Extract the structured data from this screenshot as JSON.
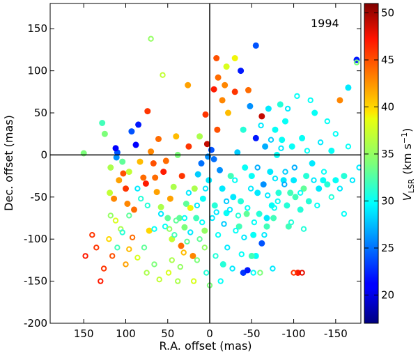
{
  "chart_data": {
    "type": "scatter",
    "epoch_label": "1994",
    "xlabel": "R.A. offset (mas)",
    "ylabel": "Dec. offset (mas)",
    "colorbar_label": "V_LSR (km s^-1)",
    "colorbar_label_parts": {
      "v": "V",
      "sub": "LSR",
      "unit": "(km s",
      "sup": "−1",
      "close": ")"
    },
    "xlim": [
      190,
      -180
    ],
    "ylim": [
      -200,
      180
    ],
    "x_reversed": true,
    "crosshair": {
      "x": 0,
      "y": 0
    },
    "x_ticks": [
      150,
      100,
      50,
      0,
      -50,
      -100,
      -150
    ],
    "y_ticks": [
      150,
      100,
      50,
      0,
      -50,
      -100,
      -150,
      -200
    ],
    "colorbar": {
      "vmin": 17,
      "vmax": 51,
      "colormap": "jet",
      "ticks": [
        20,
        25,
        30,
        35,
        40,
        45,
        50
      ]
    },
    "series": [
      {
        "kind": "filled",
        "points": [
          [
            150,
            2,
            34
          ],
          [
            128,
            38,
            32
          ],
          [
            125,
            25,
            34
          ],
          [
            119,
            -45,
            37
          ],
          [
            118,
            -15,
            36
          ],
          [
            114,
            -52,
            43
          ],
          [
            110,
            3,
            24
          ],
          [
            112,
            8,
            21
          ],
          [
            111,
            -3,
            26
          ],
          [
            108,
            -30,
            42
          ],
          [
            104,
            -8,
            33
          ],
          [
            103,
            -22,
            45
          ],
          [
            100,
            -40,
            46
          ],
          [
            98,
            -58,
            43
          ],
          [
            96,
            -20,
            37
          ],
          [
            93,
            28,
            24
          ],
          [
            90,
            -65,
            44
          ],
          [
            88,
            12,
            21
          ],
          [
            85,
            36,
            22
          ],
          [
            83,
            -8,
            41
          ],
          [
            79,
            -27,
            44
          ],
          [
            76,
            -34,
            47
          ],
          [
            74,
            52,
            46
          ],
          [
            72,
            -90,
            40
          ],
          [
            70,
            4,
            43
          ],
          [
            67,
            -10,
            45
          ],
          [
            65,
            -27,
            44
          ],
          [
            63,
            -44,
            42
          ],
          [
            61,
            19,
            44
          ],
          [
            58,
            -62,
            36
          ],
          [
            55,
            -20,
            47
          ],
          [
            52,
            -7,
            44
          ],
          [
            50,
            -75,
            33
          ],
          [
            47,
            -52,
            42
          ],
          [
            45,
            -100,
            37
          ],
          [
            43,
            -38,
            36
          ],
          [
            40,
            22,
            41
          ],
          [
            38,
            0,
            34
          ],
          [
            36,
            -75,
            33
          ],
          [
            34,
            -108,
            44
          ],
          [
            33,
            -25,
            46
          ],
          [
            30,
            -86,
            34
          ],
          [
            28,
            -58,
            33
          ],
          [
            26,
            83,
            42
          ],
          [
            25,
            10,
            46
          ],
          [
            23,
            -63,
            39
          ],
          [
            20,
            -120,
            43
          ],
          [
            18,
            -40,
            36
          ],
          [
            16,
            -75,
            32
          ],
          [
            14,
            -23,
            28
          ],
          [
            12,
            22,
            36
          ],
          [
            10,
            -10,
            25
          ],
          [
            8,
            -52,
            30
          ],
          [
            6,
            -90,
            35
          ],
          [
            5,
            48,
            46
          ],
          [
            3,
            13,
            49
          ],
          [
            2,
            -2,
            26
          ],
          [
            1,
            -30,
            29
          ],
          [
            -2,
            6,
            24
          ],
          [
            -5,
            -5,
            25
          ],
          [
            -6,
            -60,
            31
          ],
          [
            -8,
            115,
            45
          ],
          [
            -9,
            30,
            45
          ],
          [
            -12,
            -18,
            26
          ],
          [
            -15,
            -40,
            29
          ],
          [
            -16,
            -130,
            31
          ],
          [
            -18,
            83,
            43
          ],
          [
            -20,
            -69,
            30
          ],
          [
            -22,
            50,
            41
          ],
          [
            -25,
            -25,
            32
          ],
          [
            -28,
            -50,
            29
          ],
          [
            -30,
            75,
            46
          ],
          [
            -33,
            3,
            28
          ],
          [
            -35,
            -85,
            32
          ],
          [
            -37,
            -55,
            31
          ],
          [
            -40,
            30,
            31
          ],
          [
            -42,
            -15,
            30
          ],
          [
            -44,
            -70,
            33
          ],
          [
            -46,
            77,
            44
          ],
          [
            -48,
            58,
            26
          ],
          [
            -50,
            -25,
            30
          ],
          [
            -52,
            -95,
            30
          ],
          [
            -55,
            20,
            22
          ],
          [
            -57,
            -45,
            29
          ],
          [
            -59,
            -70,
            31
          ],
          [
            -62,
            46,
            49
          ],
          [
            -64,
            -35,
            26
          ],
          [
            -66,
            10,
            27
          ],
          [
            -68,
            -85,
            32
          ],
          [
            -70,
            55,
            29
          ],
          [
            -72,
            -20,
            29
          ],
          [
            -74,
            -60,
            30
          ],
          [
            -76,
            -75,
            32
          ],
          [
            -78,
            30,
            30
          ],
          [
            -80,
            0,
            30
          ],
          [
            -82,
            -45,
            31
          ],
          [
            -84,
            60,
            31
          ],
          [
            -86,
            18,
            30
          ],
          [
            -88,
            -30,
            29
          ],
          [
            -90,
            40,
            30
          ],
          [
            -92,
            -60,
            31
          ],
          [
            -94,
            -85,
            32
          ],
          [
            -96,
            -45,
            32
          ],
          [
            -98,
            10,
            30
          ],
          [
            -100,
            -30,
            29
          ],
          [
            -102,
            -50,
            32
          ],
          [
            -105,
            -140,
            47
          ],
          [
            -108,
            -65,
            31
          ],
          [
            -110,
            20,
            30
          ],
          [
            -112,
            -40,
            33
          ],
          [
            -115,
            -25,
            31
          ],
          [
            -118,
            -55,
            31
          ],
          [
            -122,
            -10,
            29
          ],
          [
            -125,
            50,
            30
          ],
          [
            -130,
            -40,
            29
          ],
          [
            -135,
            -30,
            30
          ],
          [
            -140,
            -35,
            31
          ],
          [
            -145,
            5,
            30
          ],
          [
            -150,
            -30,
            30
          ],
          [
            -155,
            65,
            43
          ],
          [
            -160,
            -25,
            31
          ],
          [
            -165,
            80,
            29
          ],
          [
            -175,
            113,
            22
          ],
          [
            -37,
            100,
            22
          ],
          [
            -40,
            -140,
            23
          ],
          [
            -45,
            -137,
            22
          ],
          [
            -55,
            -120,
            30
          ],
          [
            -62,
            -105,
            24
          ],
          [
            -68,
            -75,
            29
          ],
          [
            -20,
            105,
            38
          ],
          [
            -30,
            115,
            39
          ],
          [
            -10,
            92,
            44
          ],
          [
            -5,
            78,
            47
          ],
          [
            -15,
            65,
            43
          ],
          [
            -55,
            130,
            24
          ],
          [
            -50,
            -120,
            32
          ]
        ]
      },
      {
        "kind": "open",
        "points": [
          [
            148,
            -120,
            47
          ],
          [
            140,
            -95,
            46
          ],
          [
            135,
            -110,
            46
          ],
          [
            130,
            -150,
            47
          ],
          [
            126,
            -135,
            46
          ],
          [
            120,
            -100,
            40
          ],
          [
            116,
            -120,
            45
          ],
          [
            112,
            -78,
            38
          ],
          [
            106,
            -88,
            36
          ],
          [
            100,
            -130,
            42
          ],
          [
            96,
            -112,
            41
          ],
          [
            92,
            -98,
            44
          ],
          [
            86,
            -122,
            38
          ],
          [
            82,
            -52,
            31
          ],
          [
            78,
            -110,
            33
          ],
          [
            75,
            -140,
            36
          ],
          [
            70,
            138,
            35
          ],
          [
            66,
            -130,
            34
          ],
          [
            60,
            -148,
            37
          ],
          [
            56,
            95,
            37
          ],
          [
            53,
            -85,
            30
          ],
          [
            49,
            -140,
            38
          ],
          [
            45,
            -125,
            36
          ],
          [
            42,
            -95,
            32
          ],
          [
            38,
            -150,
            36
          ],
          [
            35,
            -133,
            35
          ],
          [
            31,
            -116,
            41
          ],
          [
            27,
            -103,
            33
          ],
          [
            23,
            -92,
            29
          ],
          [
            19,
            -150,
            38
          ],
          [
            15,
            -125,
            34
          ],
          [
            12,
            -100,
            33
          ],
          [
            9,
            -80,
            30
          ],
          [
            6,
            -110,
            35
          ],
          [
            4,
            -140,
            31
          ],
          [
            0,
            -155,
            34
          ],
          [
            -3,
            -75,
            29
          ],
          [
            -7,
            -120,
            31
          ],
          [
            -10,
            -95,
            30
          ],
          [
            -13,
            -150,
            30
          ],
          [
            -17,
            -82,
            28
          ],
          [
            -21,
            -110,
            29
          ],
          [
            -24,
            -65,
            29
          ],
          [
            -27,
            -135,
            29
          ],
          [
            -31,
            -90,
            30
          ],
          [
            -34,
            -72,
            31
          ],
          [
            -38,
            -118,
            30
          ],
          [
            -41,
            -98,
            29
          ],
          [
            -45,
            -63,
            30
          ],
          [
            -49,
            -40,
            29
          ],
          [
            -53,
            -80,
            30
          ],
          [
            -57,
            -15,
            27
          ],
          [
            -61,
            35,
            29
          ],
          [
            -65,
            -95,
            29
          ],
          [
            -69,
            -48,
            29
          ],
          [
            -73,
            18,
            28
          ],
          [
            -77,
            -63,
            30
          ],
          [
            -81,
            -55,
            30
          ],
          [
            -85,
            8,
            29
          ],
          [
            -89,
            -35,
            27
          ],
          [
            -93,
            55,
            29
          ],
          [
            -97,
            -80,
            31
          ],
          [
            -101,
            -15,
            27
          ],
          [
            -104,
            70,
            30
          ],
          [
            -108,
            -45,
            30
          ],
          [
            -112,
            -88,
            31
          ],
          [
            -116,
            5,
            30
          ],
          [
            -120,
            65,
            30
          ],
          [
            -124,
            -30,
            29
          ],
          [
            -128,
            -60,
            30
          ],
          [
            -132,
            15,
            29
          ],
          [
            -136,
            -20,
            30
          ],
          [
            -140,
            40,
            30
          ],
          [
            -145,
            -50,
            31
          ],
          [
            -150,
            25,
            30
          ],
          [
            -155,
            -40,
            29
          ],
          [
            -160,
            -70,
            30
          ],
          [
            -165,
            10,
            30
          ],
          [
            -170,
            -30,
            29
          ],
          [
            -175,
            110,
            34
          ],
          [
            -178,
            -15,
            29
          ],
          [
            -100,
            -140,
            46
          ],
          [
            -110,
            -140,
            48
          ],
          [
            -75,
            -135,
            29
          ],
          [
            -60,
            -140,
            34
          ],
          [
            -52,
            -140,
            30
          ],
          [
            -90,
            -20,
            28
          ],
          [
            -78,
            -28,
            29
          ],
          [
            -30,
            -30,
            30
          ],
          [
            -20,
            -55,
            28
          ],
          [
            -8,
            -68,
            29
          ],
          [
            5,
            -40,
            29
          ],
          [
            15,
            -60,
            29
          ],
          [
            25,
            -45,
            29
          ],
          [
            30,
            -75,
            30
          ],
          [
            40,
            -78,
            33
          ],
          [
            48,
            -88,
            35
          ],
          [
            58,
            -70,
            29
          ],
          [
            66,
            -88,
            30
          ],
          [
            74,
            -60,
            31
          ],
          [
            86,
            -40,
            29
          ],
          [
            96,
            -72,
            33
          ],
          [
            104,
            -92,
            31
          ],
          [
            110,
            -110,
            32
          ],
          [
            118,
            -72,
            35
          ]
        ]
      }
    ]
  }
}
